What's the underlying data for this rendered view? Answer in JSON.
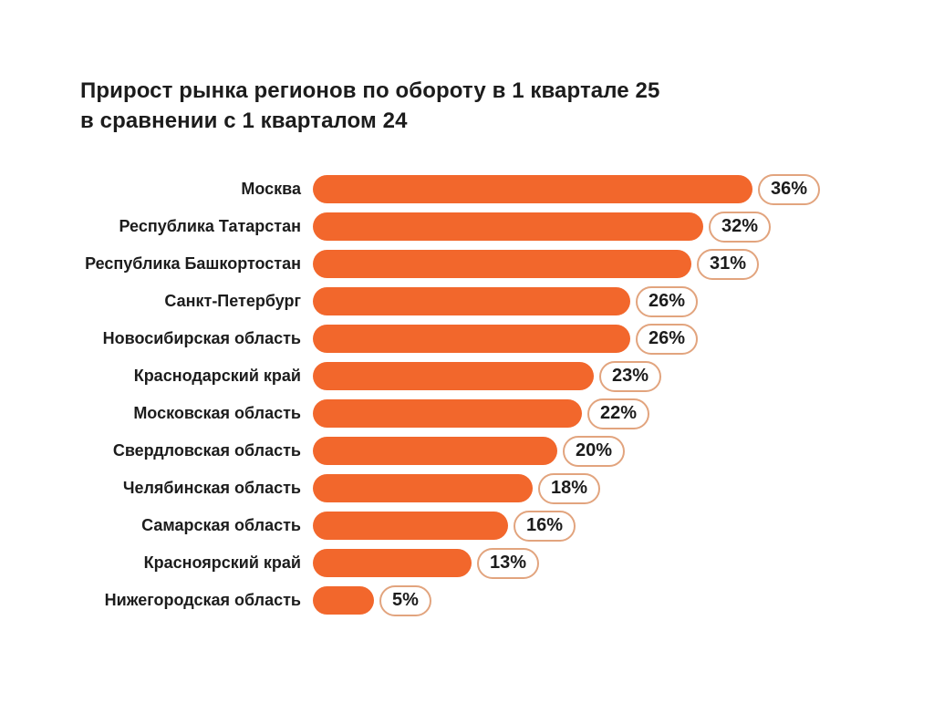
{
  "chart_data": {
    "type": "bar",
    "orientation": "horizontal",
    "title": "Прирост рынка регионов по обороту в 1 квартале 25 в сравнении с 1 кварталом 24",
    "title_lines": [
      "Прирост рынка регионов по обороту в 1 квартале 25",
      "в сравнении с 1 кварталом 24"
    ],
    "categories": [
      "Москва",
      "Республика Татарстан",
      "Республика Башкортостан",
      "Санкт-Петербург",
      "Новосибирская область",
      "Краснодарский край",
      "Московская область",
      "Свердловская область",
      "Челябинская область",
      "Самарская область",
      "Красноярский край",
      "Нижегородская область"
    ],
    "values": [
      36,
      32,
      31,
      26,
      26,
      23,
      22,
      20,
      18,
      16,
      13,
      5
    ],
    "value_suffix": "%",
    "xlabel": "",
    "ylabel": "",
    "xlim": [
      0,
      36
    ],
    "grid": false,
    "legend": false,
    "bar_color": "#f2672c",
    "badge_border_color": "#e2a47e",
    "badge_bg": "#ffffff",
    "text_color": "#1c1c1c",
    "background_color": "#ffffff"
  }
}
